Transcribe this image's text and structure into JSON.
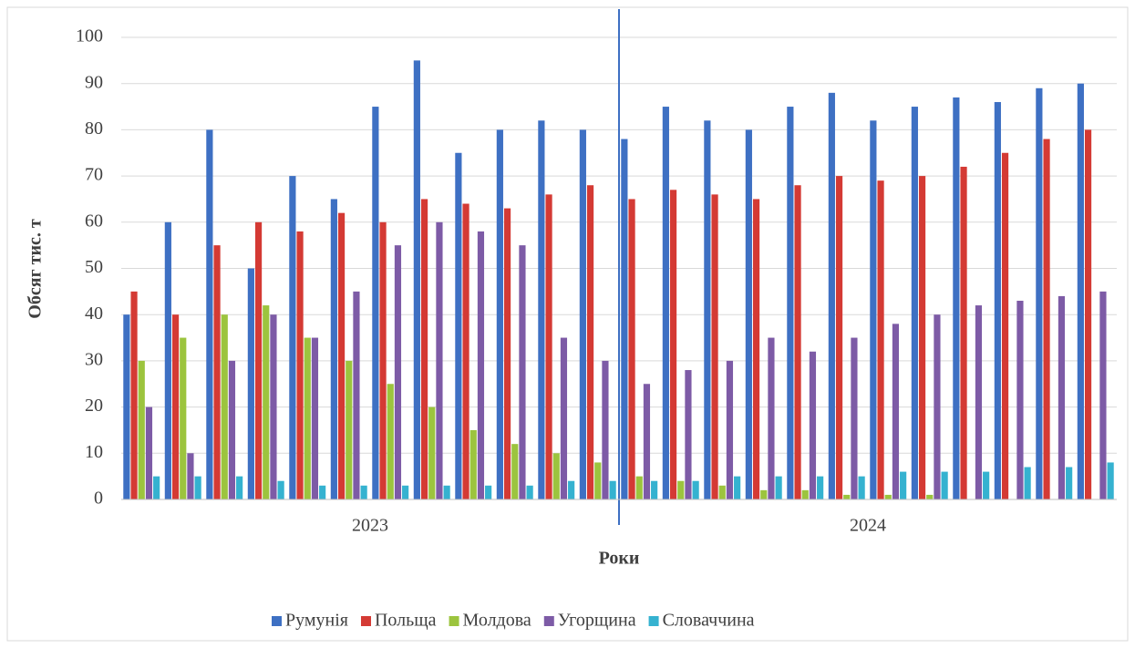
{
  "chart_data": {
    "type": "bar",
    "y_label": "Обсяг тис. т",
    "x_label": "Роки",
    "x_groups": [
      "2023",
      "2024"
    ],
    "categories": [
      null,
      null,
      null,
      null,
      null,
      null,
      null,
      null,
      null,
      null,
      null,
      null,
      null,
      null,
      null,
      null,
      null,
      null,
      null,
      null,
      null,
      null,
      null,
      null
    ],
    "series": [
      {
        "name": "Румунія",
        "color": "#3e70c3",
        "values": [
          40,
          60,
          80,
          50,
          70,
          65,
          85,
          95,
          75,
          80,
          82,
          80,
          78,
          85,
          82,
          80,
          85,
          88,
          82,
          85,
          87,
          86,
          89,
          90
        ]
      },
      {
        "name": "Польща",
        "color": "#d43a34",
        "values": [
          45,
          40,
          55,
          60,
          58,
          62,
          60,
          65,
          64,
          63,
          66,
          68,
          65,
          67,
          66,
          65,
          68,
          70,
          69,
          70,
          72,
          75,
          78,
          80
        ]
      },
      {
        "name": "Молдова",
        "color": "#9cc43e",
        "values": [
          30,
          35,
          40,
          42,
          35,
          30,
          25,
          20,
          15,
          12,
          10,
          8,
          5,
          4,
          3,
          2,
          2,
          1,
          1,
          1,
          0,
          0,
          0,
          0
        ]
      },
      {
        "name": "Угорщина",
        "color": "#7d5ba6",
        "values": [
          20,
          10,
          30,
          40,
          35,
          45,
          55,
          60,
          58,
          55,
          35,
          30,
          25,
          28,
          30,
          35,
          32,
          35,
          38,
          40,
          42,
          43,
          44,
          45
        ]
      },
      {
        "name": "Словаччина",
        "color": "#35b2d0",
        "values": [
          5,
          5,
          5,
          4,
          3,
          3,
          3,
          3,
          3,
          3,
          4,
          4,
          4,
          4,
          5,
          5,
          5,
          5,
          6,
          6,
          6,
          7,
          7,
          8
        ]
      }
    ],
    "ylim": [
      0,
      100
    ],
    "yticks": [
      0,
      10,
      20,
      30,
      40,
      50,
      60,
      70,
      80,
      90,
      100
    ],
    "grid": true,
    "legend": "bottom"
  }
}
